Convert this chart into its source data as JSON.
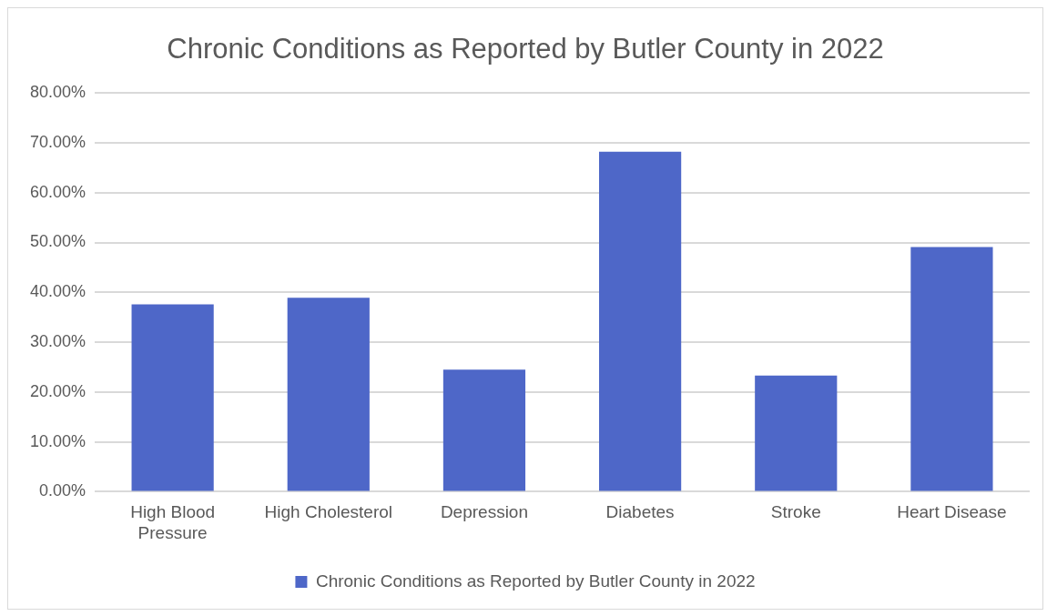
{
  "chart_data": {
    "type": "bar",
    "title": "Chronic Conditions as Reported by Butler County in 2022",
    "categories": [
      "High Blood Pressure",
      "High Cholesterol",
      "Depression",
      "Diabetes",
      "Stroke",
      "Heart Disease"
    ],
    "series": [
      {
        "name": "Chronic Conditions as Reported by Butler County in 2022",
        "color": "#4e67c8",
        "values": [
          37.6,
          38.9,
          24.5,
          68.2,
          23.3,
          49.1
        ]
      }
    ],
    "ylim": [
      0,
      80
    ],
    "yticks": [
      {
        "value": 0,
        "label": "0.00%"
      },
      {
        "value": 10,
        "label": "10.00%"
      },
      {
        "value": 20,
        "label": "20.00%"
      },
      {
        "value": 30,
        "label": "30.00%"
      },
      {
        "value": 40,
        "label": "40.00%"
      },
      {
        "value": 50,
        "label": "50.00%"
      },
      {
        "value": 60,
        "label": "60.00%"
      },
      {
        "value": 70,
        "label": "70.00%"
      },
      {
        "value": 80,
        "label": "80.00%"
      }
    ],
    "grid": "y",
    "legend": "bottom"
  }
}
